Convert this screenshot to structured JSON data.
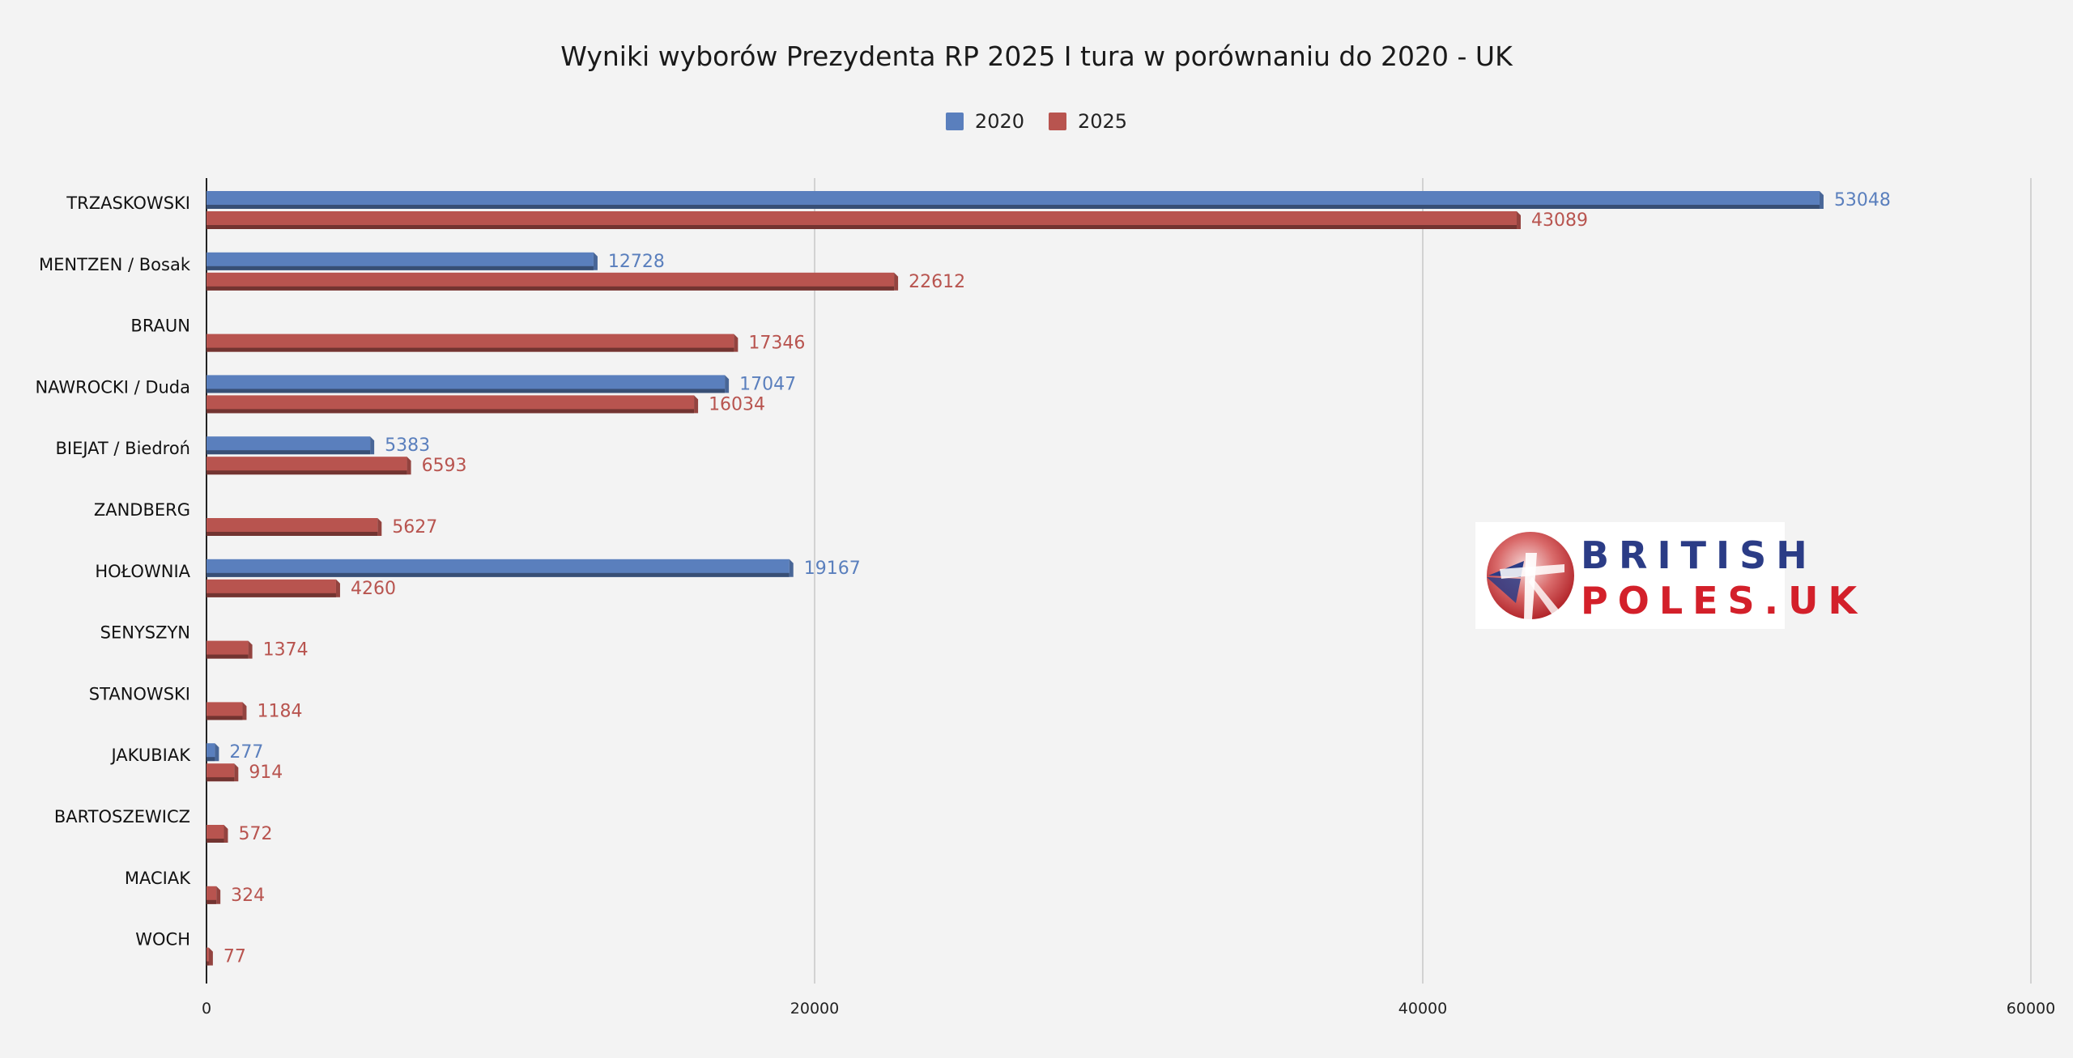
{
  "chart_data": {
    "type": "bar",
    "orientation": "horizontal",
    "title": "Wyniki wyborów Prezydenta RP 2025 I tura w porównaniu do 2020 - UK",
    "categories": [
      "TRZASKOWSKI",
      "MENTZEN / Bosak",
      "BRAUN",
      "NAWROCKI / Duda",
      "BIEJAT / Biedroń",
      "ZANDBERG",
      "HOŁOWNIA",
      "SENYSZYN",
      "STANOWSKI",
      "JAKUBIAK",
      "BARTOSZEWICZ",
      "MACIAK",
      "WOCH"
    ],
    "series": [
      {
        "name": "2020",
        "color": "#5a7fbd",
        "values": [
          53048,
          12728,
          null,
          17047,
          5383,
          null,
          19167,
          null,
          null,
          277,
          null,
          null,
          null
        ]
      },
      {
        "name": "2025",
        "color": "#b8544f",
        "values": [
          43089,
          22612,
          17346,
          16034,
          6593,
          5627,
          4260,
          1374,
          1184,
          914,
          572,
          324,
          77
        ]
      }
    ],
    "xlim": [
      0,
      60000
    ],
    "xticks": [
      "0",
      "20000",
      "40000",
      "60000"
    ],
    "xlabel": "",
    "ylabel": "",
    "grid": true,
    "legend_position": "top"
  },
  "logo": {
    "line1": "BRITISH",
    "line2": "POLES.UK"
  }
}
